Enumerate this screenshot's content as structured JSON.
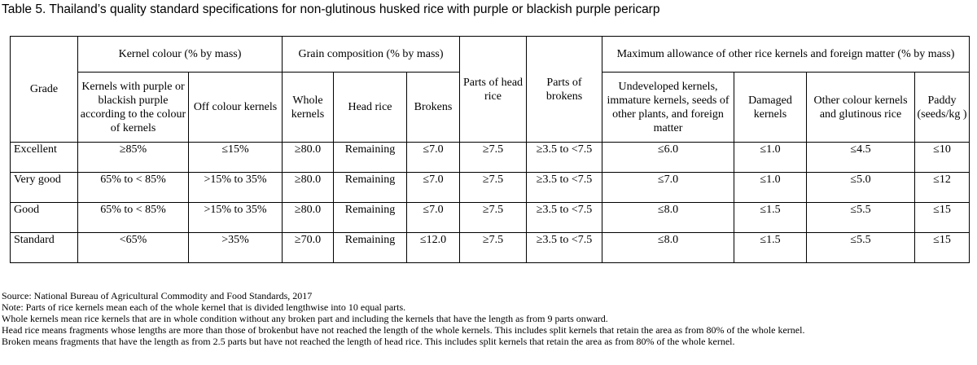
{
  "caption": "Table 5. Thailand’s quality standard specifications for non-glutinous husked rice with purple or blackish purple pericarp",
  "table": {
    "group_headers": {
      "kernel_colour": "Kernel colour (% by mass)",
      "grain_composition": "Grain composition (% by mass)",
      "max_allowance": "Maximum allowance of other rice kernels and foreign matter (% by mass)"
    },
    "columns": {
      "grade": "Grade",
      "kernels_purple": "Kernels with purple or blackish purple according to the colour of kernels",
      "off_colour": "Off colour kernels",
      "whole_kernels": "Whole kernels",
      "head_rice": "Head rice",
      "brokens": "Brokens",
      "parts_head_rice": "Parts of head rice",
      "parts_brokens": "Parts of brokens",
      "undeveloped": "Undeveloped kernels, immature kernels, seeds of other plants, and foreign matter",
      "damaged": "Damaged kernels",
      "other_colour": "Other colour kernels and glutinous rice",
      "paddy": "Paddy (seeds/kg )"
    },
    "rows": [
      {
        "grade": "Excellent",
        "kernels_purple": "≥85%",
        "off_colour": "≤15%",
        "whole_kernels": "≥80.0",
        "head_rice": "Remaining",
        "brokens": "≤7.0",
        "parts_head_rice": "≥7.5",
        "parts_brokens": "≥3.5 to <7.5",
        "undeveloped": "≤6.0",
        "damaged": "≤1.0",
        "other_colour": "≤4.5",
        "paddy": "≤10"
      },
      {
        "grade": "Very good",
        "kernels_purple": "65% to < 85%",
        "off_colour": ">15% to 35%",
        "whole_kernels": "≥80.0",
        "head_rice": "Remaining",
        "brokens": "≤7.0",
        "parts_head_rice": "≥7.5",
        "parts_brokens": "≥3.5 to <7.5",
        "undeveloped": "≤7.0",
        "damaged": "≤1.0",
        "other_colour": "≤5.0",
        "paddy": "≤12"
      },
      {
        "grade": "Good",
        "kernels_purple": "65% to < 85%",
        "off_colour": ">15% to 35%",
        "whole_kernels": "≥80.0",
        "head_rice": "Remaining",
        "brokens": "≤7.0",
        "parts_head_rice": "≥7.5",
        "parts_brokens": "≥3.5 to <7.5",
        "undeveloped": "≤8.0",
        "damaged": "≤1.5",
        "other_colour": "≤5.5",
        "paddy": "≤15"
      },
      {
        "grade": "Standard",
        "kernels_purple": "<65%",
        "off_colour": ">35%",
        "whole_kernels": "≥70.0",
        "head_rice": "Remaining",
        "brokens": "≤12.0",
        "parts_head_rice": "≥7.5",
        "parts_brokens": "≥3.5 to <7.5",
        "undeveloped": "≤8.0",
        "damaged": "≤1.5",
        "other_colour": "≤5.5",
        "paddy": "≤15"
      }
    ]
  },
  "notes": [
    "Source: National Bureau of Agricultural Commodity and Food Standards, 2017",
    "Note: Parts of rice kernels mean each of the whole kernel that is divided lengthwise into 10 equal parts.",
    "Whole kernels mean rice kernels that are in whole condition without any broken part and including the kernels that have the length as from 9 parts onward.",
    "Head rice means fragments whose lengths are more than those of brokenbut have not reached the length of the whole kernels. This includes split kernels that retain the area as from 80% of the whole kernel.",
    "Broken means fragments that have the length as from 2.5 parts but have not reached the length of head rice. This includes split kernels that retain the area as from 80% of the whole kernel."
  ]
}
